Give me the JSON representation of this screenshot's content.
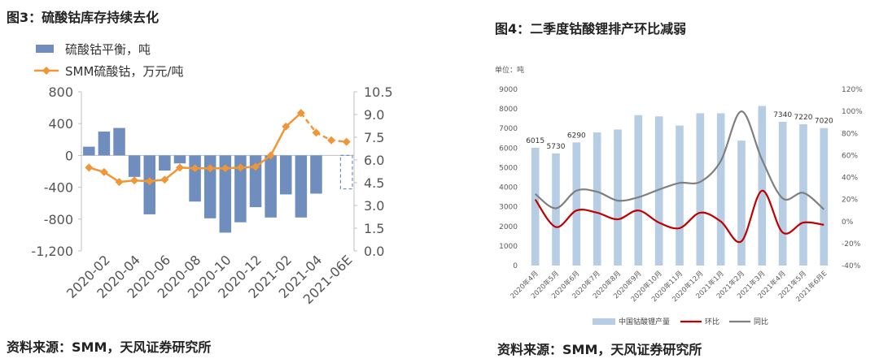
{
  "left": {
    "title": "图3：硫酸钴库存持续去化",
    "source": "资料来源：SMM，天风证券研究所",
    "legend": {
      "bar": "硫酸钴平衡，吨",
      "line": "SMM硫酸钴，万元/吨"
    },
    "colors": {
      "bar": "#6f8ebe",
      "line": "#f19637"
    }
  },
  "right": {
    "title": "图4：二季度钴酸锂排产环比减弱",
    "source": "资料来源：SMM，天风证券研究所",
    "unit": "单位：吨",
    "legend": {
      "bar": "中国钴酸锂产量",
      "mom": "环比",
      "yoy": "同比"
    },
    "colors": {
      "bar": "#b7cde4",
      "mom": "#c00000",
      "yoy": "#7f7f7f"
    }
  },
  "chart_data": [
    {
      "type": "bar",
      "combo": "bar+line",
      "x": [
        "2020-01",
        "2020-02",
        "2020-03",
        "2020-04",
        "2020-05",
        "2020-06",
        "2020-07",
        "2020-08",
        "2020-09",
        "2020-10",
        "2020-11",
        "2020-12",
        "2021-01",
        "2021-02",
        "2021-03",
        "2021-04",
        "2021-05",
        "2021-06E"
      ],
      "x_tick_labels": [
        "2020-02",
        "2020-04",
        "2020-06",
        "2020-08",
        "2020-10",
        "2020-12",
        "2021-02",
        "2021-04",
        "2021-06E"
      ],
      "series": [
        {
          "name": "硫酸钴平衡，吨",
          "type": "bar",
          "axis": "left",
          "values": [
            110,
            300,
            345,
            -270,
            -740,
            -190,
            -100,
            -580,
            -790,
            -970,
            -840,
            -650,
            -780,
            -490,
            -780,
            -480,
            0,
            -420
          ],
          "forecast_index": 17
        },
        {
          "name": "SMM硫酸钴，万元/吨",
          "type": "line",
          "axis": "right",
          "values": [
            5.5,
            5.2,
            4.55,
            4.65,
            4.6,
            4.7,
            5.5,
            5.45,
            5.45,
            5.45,
            5.5,
            5.55,
            6.3,
            8.2,
            9.1,
            7.8,
            7.3,
            7.2
          ],
          "dashed_from_index": 14
        }
      ],
      "yticks_left": [
        "800",
        "400",
        "0",
        "-400",
        "-800",
        "-1,200"
      ],
      "ylim_left": [
        -1200,
        800
      ],
      "yticks_right": [
        "10.5",
        "9.0",
        "7.5",
        "6.0",
        "4.5",
        "3.0",
        "1.5",
        "0.0"
      ],
      "ylim_right": [
        0,
        10.5
      ],
      "legend_position": "top-left",
      "grid": false
    },
    {
      "type": "bar",
      "combo": "bar+line",
      "categories": [
        "2020年4月",
        "2020年5月",
        "2020年6月",
        "2020年7月",
        "2020年8月",
        "2020年9月",
        "2020年10月",
        "2020年11月",
        "2020年12月",
        "2021年1月",
        "2021年2月",
        "2021年3月",
        "2021年4月",
        "2021年5月",
        "2021年6月E"
      ],
      "series": [
        {
          "name": "中国钴酸锂产量",
          "type": "bar",
          "axis": "left",
          "values": [
            6015,
            5730,
            6290,
            6800,
            6950,
            7680,
            7620,
            7150,
            7780,
            7780,
            6380,
            8150,
            7340,
            7220,
            7020
          ],
          "labels": [
            "6015",
            "5730",
            "6290",
            "",
            "",
            "",
            "",
            "",
            "",
            "",
            "",
            "",
            "7340",
            "7220",
            "7020"
          ]
        },
        {
          "name": "环比",
          "type": "line",
          "axis": "right",
          "values": [
            20,
            -5,
            10,
            8,
            2,
            10,
            -1,
            -6,
            8,
            0,
            -18,
            28,
            -10,
            -1,
            -3
          ]
        },
        {
          "name": "同比",
          "type": "line",
          "axis": "right",
          "values": [
            25,
            12,
            28,
            27,
            19,
            22,
            29,
            35,
            36,
            55,
            100,
            56,
            21,
            26,
            11
          ]
        }
      ],
      "yticks_left": [
        "9000",
        "8000",
        "7000",
        "6000",
        "5000",
        "4000",
        "3000",
        "2000",
        "1000",
        "0"
      ],
      "ylim_left": [
        0,
        9000
      ],
      "yticks_right": [
        "120%",
        "100%",
        "80%",
        "60%",
        "40%",
        "20%",
        "0%",
        "-20%",
        "-40%"
      ],
      "ylim_right": [
        -40,
        120
      ],
      "legend_position": "bottom",
      "grid": false
    }
  ]
}
